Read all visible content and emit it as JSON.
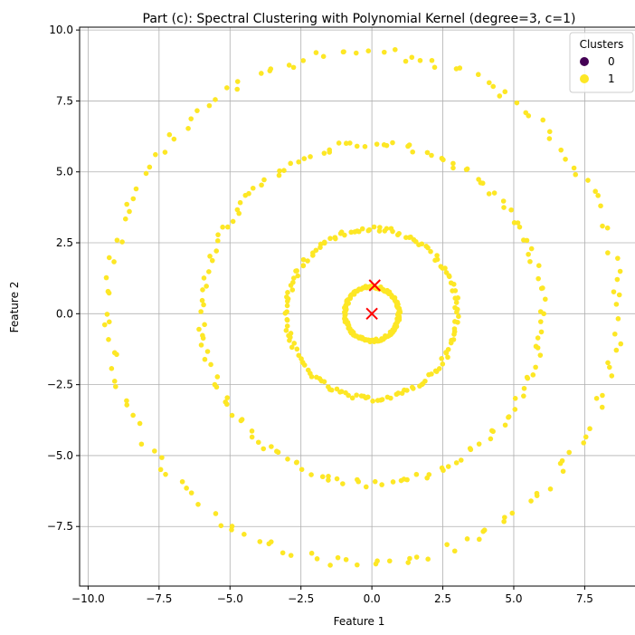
{
  "chart_data": {
    "type": "scatter",
    "title": "Part (c): Spectral Clustering with Polynomial Kernel (degree=3, c=1)",
    "xlabel": "Feature 1",
    "ylabel": "Feature 2",
    "xlim": [
      -10.3,
      9.4
    ],
    "ylim": [
      -9.6,
      10.1
    ],
    "xticks": [
      -10.0,
      -7.5,
      -5.0,
      -2.5,
      0.0,
      2.5,
      5.0,
      7.5
    ],
    "yticks": [
      -7.5,
      -5.0,
      -2.5,
      0.0,
      2.5,
      5.0,
      7.5,
      10.0
    ],
    "xtick_labels": [
      "−10.0",
      "−7.5",
      "−5.0",
      "−2.5",
      "0.0",
      "2.5",
      "5.0",
      "7.5"
    ],
    "ytick_labels": [
      "−7.5",
      "−5.0",
      "−2.5",
      "0.0",
      "2.5",
      "5.0",
      "7.5",
      "10.0"
    ],
    "grid": true,
    "legend": {
      "title": "Clusters",
      "placement": "top-right",
      "entries": [
        {
          "label": "0",
          "color": "#440154"
        },
        {
          "label": "1",
          "color": "#fde725"
        }
      ]
    },
    "point_color": "#fde725",
    "series": [
      {
        "cluster": "1",
        "shape": "ring",
        "center": [
          0.0,
          0.0
        ],
        "radius": 0.95,
        "count": 140
      },
      {
        "cluster": "1",
        "shape": "ring",
        "center": [
          0.0,
          0.0
        ],
        "radius": 3.0,
        "count": 150
      },
      {
        "cluster": "1",
        "shape": "ring",
        "center": [
          0.0,
          0.0
        ],
        "radius": 6.0,
        "count": 150
      },
      {
        "cluster": "1",
        "shape": "ring",
        "center": [
          -0.3,
          0.2
        ],
        "radius": 9.0,
        "count": 150
      }
    ],
    "centroids": {
      "marker": "x",
      "color": "#ff0000",
      "points": [
        [
          0.0,
          0.0
        ],
        [
          0.1,
          1.0
        ]
      ]
    }
  }
}
